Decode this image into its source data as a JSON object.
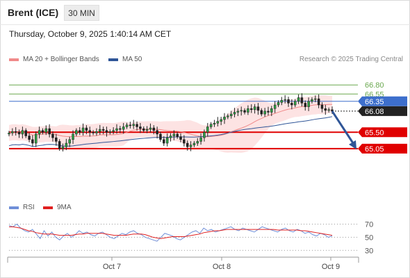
{
  "header": {
    "instrument": "Brent (ICE)",
    "timeframe": "30 MIN"
  },
  "datetime": "Thursday, October 9, 2025 1:40:14 AM CET",
  "legend": [
    {
      "label": "MA 20 + Bollinger Bands",
      "color": "#f08a8a"
    },
    {
      "label": "MA 50",
      "color": "#2f5597"
    }
  ],
  "credit": "Research © 2025 Trading Central",
  "rsi_legend": [
    {
      "label": "RSI",
      "color": "#6f8fd8"
    },
    {
      "label": "9MA",
      "color": "#e02020"
    }
  ],
  "chart_data": [
    {
      "type": "candlestick",
      "ylim": [
        63.75,
        67.3
      ],
      "x_ticks": [
        "Oct 7",
        "Oct 8",
        "Oct 9"
      ],
      "levels": [
        {
          "label": "66.80",
          "value": 66.8,
          "color": "#6aa84f",
          "style": "thin"
        },
        {
          "label": "66.55",
          "value": 66.55,
          "color": "#6aa84f",
          "style": "thin"
        },
        {
          "label": "66.35",
          "value": 66.35,
          "color": "#3d6fcc",
          "style": "thin"
        },
        {
          "label": "66.08",
          "value": 66.08,
          "color": "#222222",
          "style": "dotted"
        },
        {
          "label": "65.50",
          "value": 65.5,
          "color": "#e00000",
          "style": "thick"
        },
        {
          "label": "65.05",
          "value": 65.05,
          "color": "#e00000",
          "style": "thick"
        }
      ],
      "last_price": 66.08,
      "forecast": {
        "from": 66.08,
        "to": 65.05,
        "direction": "down"
      },
      "close_series": [
        65.48,
        65.52,
        65.5,
        65.45,
        65.55,
        65.4,
        65.3,
        65.2,
        65.45,
        65.55,
        65.5,
        65.6,
        65.45,
        65.35,
        65.25,
        65.05,
        65.1,
        65.2,
        65.3,
        65.45,
        65.55,
        65.5,
        65.62,
        65.55,
        65.5,
        65.48,
        65.52,
        65.58,
        65.55,
        65.5,
        65.52,
        65.55,
        65.6,
        65.58,
        65.65,
        65.7,
        65.68,
        65.72,
        65.65,
        65.6,
        65.55,
        65.58,
        65.62,
        65.55,
        65.45,
        65.3,
        65.2,
        65.35,
        65.4,
        65.45,
        65.38,
        65.3,
        65.2,
        65.1,
        65.15,
        65.2,
        65.25,
        65.35,
        65.5,
        65.65,
        65.72,
        65.75,
        65.8,
        65.85,
        65.92,
        65.95,
        66.0,
        66.05,
        66.08,
        66.1,
        66.05,
        66.15,
        66.12,
        66.2,
        66.1,
        66.0,
        66.08,
        66.05,
        66.15,
        66.25,
        66.32,
        66.38,
        66.4,
        66.3,
        66.25,
        66.35,
        66.45,
        66.3,
        66.2,
        66.35,
        66.4,
        66.42,
        66.25,
        66.15,
        66.1,
        66.12,
        66.08
      ]
    },
    {
      "type": "line",
      "title": "RSI",
      "ylim": [
        25,
        78
      ],
      "y_ticks": [
        70,
        50,
        30
      ],
      "series": [
        {
          "name": "RSI",
          "values": [
            68,
            66,
            70,
            64,
            60,
            58,
            62,
            55,
            48,
            60,
            52,
            58,
            50,
            46,
            52,
            56,
            50,
            54,
            60,
            56,
            58,
            54,
            52,
            56,
            58,
            54,
            50,
            48,
            52,
            56,
            54,
            58,
            60,
            56,
            54,
            50,
            48,
            46,
            44,
            50,
            56,
            54,
            52,
            48,
            46,
            50,
            54,
            58,
            60,
            56,
            64,
            60,
            62,
            58,
            60,
            62,
            64,
            66,
            62,
            60,
            64,
            62,
            60,
            58,
            62,
            66,
            64,
            62,
            60,
            58,
            62,
            64,
            60,
            58,
            62,
            60,
            56,
            58,
            54,
            52,
            56,
            54,
            50,
            52
          ]
        },
        {
          "name": "9MA",
          "values": [
            66,
            66,
            65,
            64,
            62,
            60,
            59,
            57,
            56,
            55,
            55,
            55,
            54,
            53,
            53,
            53,
            53,
            54,
            55,
            55,
            56,
            56,
            56,
            56,
            56,
            55,
            54,
            53,
            53,
            53,
            53,
            54,
            55,
            55,
            55,
            54,
            52,
            50,
            49,
            48,
            49,
            50,
            51,
            51,
            51,
            51,
            52,
            53,
            54,
            55,
            57,
            58,
            59,
            60,
            60,
            61,
            62,
            62,
            62,
            62,
            62,
            62,
            62,
            62,
            62,
            62,
            62,
            62,
            62,
            61,
            61,
            61,
            61,
            61,
            61,
            60,
            60,
            59,
            58,
            57,
            56,
            55,
            54,
            53
          ]
        }
      ]
    }
  ]
}
